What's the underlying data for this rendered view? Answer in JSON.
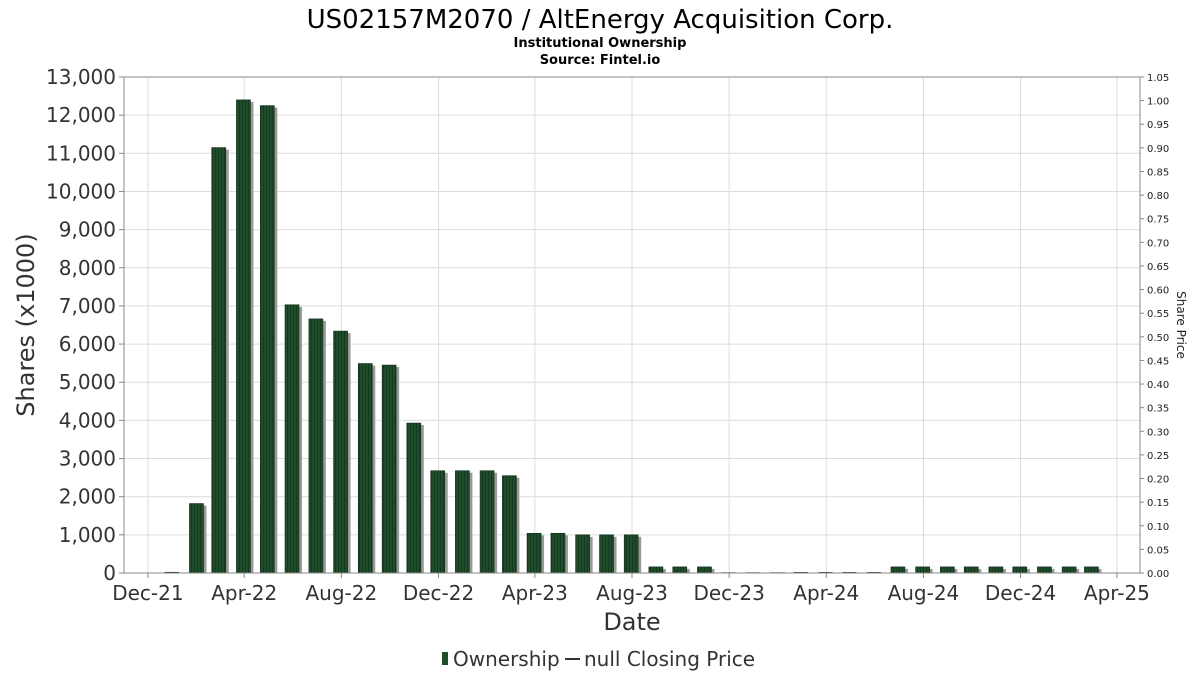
{
  "chart_data": {
    "type": "bar",
    "title": "US02157M2070 / AltEnergy Acquisition Corp.",
    "subtitle": "Institutional Ownership",
    "source": "Source: Fintel.io",
    "xlabel": "Date",
    "ylabel": "Shares (x1000)",
    "ylabel_right": "Share Price",
    "ylim": [
      0,
      13000
    ],
    "ylim_right": [
      0,
      1.05
    ],
    "yticks": [
      0,
      1000,
      2000,
      3000,
      4000,
      5000,
      6000,
      7000,
      8000,
      9000,
      10000,
      11000,
      12000,
      13000
    ],
    "ytick_labels": [
      "0",
      "1,000",
      "2,000",
      "3,000",
      "4,000",
      "5,000",
      "6,000",
      "7,000",
      "8,000",
      "9,000",
      "10,000",
      "11,000",
      "12,000",
      "13,000"
    ],
    "yticks_right": [
      "0.00",
      "0.05",
      "0.10",
      "0.15",
      "0.20",
      "0.25",
      "0.30",
      "0.35",
      "0.40",
      "0.45",
      "0.50",
      "0.55",
      "0.60",
      "0.65",
      "0.70",
      "0.75",
      "0.80",
      "0.85",
      "0.90",
      "0.95",
      "1.00",
      "1.05"
    ],
    "xlim": [
      "2021-11-01",
      "2025-04-30"
    ],
    "xticks": [
      {
        "date": "2021-12-01",
        "label": "Dec-21"
      },
      {
        "date": "2022-04-01",
        "label": "Apr-22"
      },
      {
        "date": "2022-08-01",
        "label": "Aug-22"
      },
      {
        "date": "2022-12-01",
        "label": "Dec-22"
      },
      {
        "date": "2023-04-01",
        "label": "Apr-23"
      },
      {
        "date": "2023-08-01",
        "label": "Aug-23"
      },
      {
        "date": "2023-12-01",
        "label": "Dec-23"
      },
      {
        "date": "2024-04-01",
        "label": "Apr-24"
      },
      {
        "date": "2024-08-01",
        "label": "Aug-24"
      },
      {
        "date": "2024-12-01",
        "label": "Dec-24"
      },
      {
        "date": "2025-04-01",
        "label": "Apr-25"
      }
    ],
    "grid": true,
    "legend_position": "bottom-center",
    "series": [
      {
        "name": "Ownership",
        "color": "#1f4d2b",
        "x": [
          "2021-12-31",
          "2022-01-31",
          "2022-02-28",
          "2022-03-31",
          "2022-04-30",
          "2022-05-31",
          "2022-06-30",
          "2022-07-31",
          "2022-08-31",
          "2022-09-30",
          "2022-10-31",
          "2022-11-30",
          "2022-12-31",
          "2023-01-31",
          "2023-02-28",
          "2023-03-31",
          "2023-04-30",
          "2023-05-31",
          "2023-06-30",
          "2023-07-31",
          "2023-08-31",
          "2023-09-30",
          "2023-10-31",
          "2023-11-30",
          "2023-12-31",
          "2024-01-31",
          "2024-02-29",
          "2024-03-31",
          "2024-04-30",
          "2024-05-31",
          "2024-06-30",
          "2024-07-31",
          "2024-08-31",
          "2024-09-30",
          "2024-10-31",
          "2024-11-30",
          "2024-12-31",
          "2025-01-31",
          "2025-02-28"
        ],
        "values": [
          20,
          1820,
          11150,
          12400,
          12250,
          7030,
          6660,
          6340,
          5490,
          5450,
          3930,
          2680,
          2680,
          2680,
          2550,
          1040,
          1040,
          1000,
          1000,
          1000,
          160,
          160,
          160,
          10,
          10,
          10,
          0,
          0,
          0,
          0,
          160,
          160,
          160,
          160,
          160,
          160,
          160,
          160,
          160
        ]
      },
      {
        "name": "null Closing Price",
        "color": "#333333",
        "x": [],
        "values": []
      }
    ]
  }
}
